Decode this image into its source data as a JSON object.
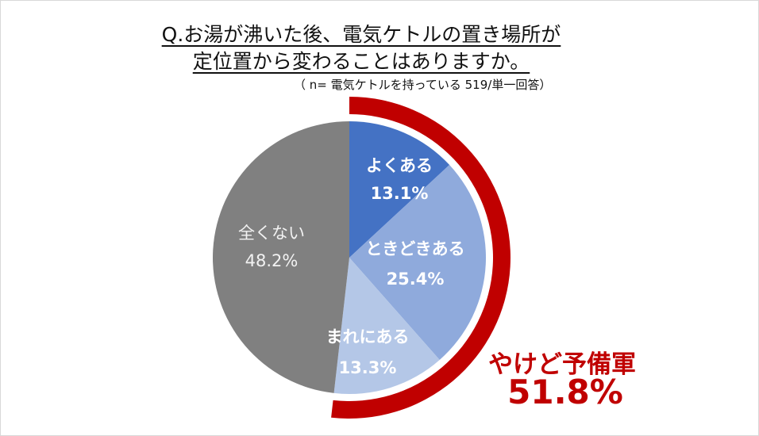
{
  "chart_data": {
    "type": "pie",
    "title_line1": "Q.お湯が沸いた後、電気ケトルの置き場所が",
    "title_line2": "定位置から変わることはありますか。",
    "subtitle": "（ n= 電気ケトルを持っている 519/単一回答）",
    "slices": [
      {
        "label": "よくある",
        "value": 13.1,
        "value_label": "13.1%",
        "color": "#4472c4"
      },
      {
        "label": "ときどきある",
        "value": 25.4,
        "value_label": "25.4%",
        "color": "#8faadc"
      },
      {
        "label": "まれにある",
        "value": 13.3,
        "value_label": "13.3%",
        "color": "#b4c7e7"
      },
      {
        "label": "全くない",
        "value": 48.2,
        "value_label": "48.2%",
        "color": "#808080"
      }
    ],
    "highlight": {
      "label": "やけど予備軍",
      "value": 51.8,
      "value_label": "51.8%",
      "color": "#c00000"
    }
  }
}
